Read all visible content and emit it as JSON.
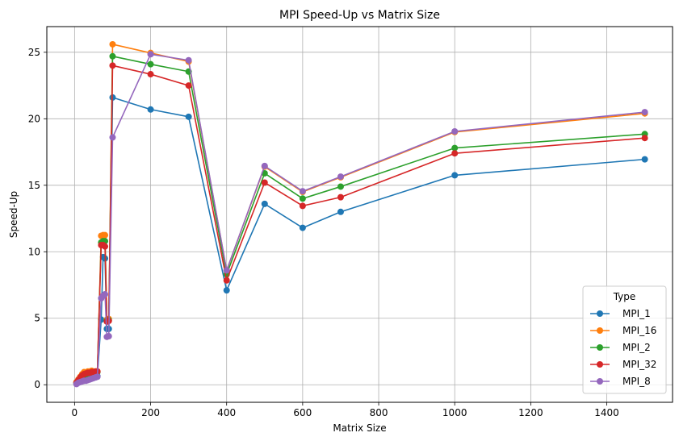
{
  "chart_data": {
    "type": "line",
    "title": "MPI Speed-Up vs Matrix Size",
    "xlabel": "Matrix Size",
    "ylabel": "Speed-Up",
    "xlim": [
      -73,
      1573
    ],
    "ylim": [
      -1.32,
      26.93
    ],
    "xticks": [
      0,
      200,
      400,
      600,
      800,
      1000,
      1200,
      1400
    ],
    "yticks": [
      0,
      5,
      10,
      15,
      20,
      25
    ],
    "grid": true,
    "legend_title": "Type",
    "legend_position": "lower-right",
    "series": [
      {
        "name": "MPI_1",
        "color": "#1f77b4",
        "x": [
          5,
          10,
          15,
          20,
          25,
          30,
          35,
          40,
          45,
          50,
          55,
          60,
          70,
          75,
          80,
          85,
          90,
          100,
          200,
          300,
          400,
          500,
          600,
          700,
          1000,
          1500
        ],
        "y": [
          0.1,
          0.2,
          0.25,
          0.3,
          0.3,
          0.35,
          0.4,
          0.45,
          0.5,
          0.55,
          0.6,
          0.65,
          4.9,
          9.6,
          9.5,
          4.2,
          4.2,
          21.6,
          20.7,
          20.15,
          7.1,
          13.6,
          11.8,
          13.0,
          15.75,
          16.95
        ]
      },
      {
        "name": "MPI_16",
        "color": "#ff7f0e",
        "x": [
          5,
          10,
          15,
          20,
          25,
          30,
          35,
          40,
          45,
          50,
          55,
          60,
          70,
          75,
          80,
          85,
          90,
          100,
          200,
          300,
          400,
          500,
          600,
          700,
          1000,
          1500
        ],
        "y": [
          0.2,
          0.4,
          0.6,
          0.8,
          0.95,
          0.9,
          1.0,
          1.0,
          1.05,
          0.95,
          1.0,
          1.0,
          11.2,
          11.25,
          11.25,
          4.9,
          4.95,
          25.6,
          24.95,
          24.3,
          8.6,
          16.4,
          14.5,
          15.6,
          19.0,
          20.4
        ]
      },
      {
        "name": "MPI_2",
        "color": "#2ca02c",
        "x": [
          5,
          10,
          15,
          20,
          25,
          30,
          35,
          40,
          45,
          50,
          55,
          60,
          70,
          75,
          80,
          85,
          90,
          100,
          200,
          300,
          400,
          500,
          600,
          700,
          1000,
          1500
        ],
        "y": [
          0.15,
          0.3,
          0.5,
          0.65,
          0.75,
          0.8,
          0.85,
          0.85,
          0.9,
          0.9,
          0.95,
          0.95,
          10.7,
          10.8,
          10.8,
          4.8,
          4.85,
          24.7,
          24.1,
          23.55,
          8.3,
          15.9,
          14.0,
          14.9,
          17.8,
          18.85
        ]
      },
      {
        "name": "MPI_32",
        "color": "#d62728",
        "x": [
          5,
          10,
          15,
          20,
          25,
          30,
          35,
          40,
          45,
          50,
          55,
          60,
          70,
          75,
          80,
          85,
          90,
          100,
          200,
          300,
          400,
          500,
          600,
          700,
          1000,
          1500
        ],
        "y": [
          0.15,
          0.35,
          0.55,
          0.7,
          0.8,
          0.85,
          0.9,
          0.9,
          0.95,
          0.95,
          1.0,
          1.0,
          10.5,
          10.5,
          10.4,
          4.75,
          4.8,
          24.0,
          23.35,
          22.5,
          7.85,
          15.2,
          13.45,
          14.1,
          17.4,
          18.55
        ]
      },
      {
        "name": "MPI_8",
        "color": "#9467bd",
        "x": [
          5,
          10,
          15,
          20,
          25,
          30,
          35,
          40,
          45,
          50,
          55,
          60,
          70,
          75,
          80,
          85,
          90,
          100,
          200,
          300,
          400,
          500,
          600,
          700,
          1000,
          1500
        ],
        "y": [
          0.05,
          0.15,
          0.2,
          0.25,
          0.3,
          0.3,
          0.35,
          0.4,
          0.45,
          0.5,
          0.55,
          0.6,
          6.5,
          6.7,
          6.8,
          3.6,
          3.65,
          18.6,
          24.85,
          24.4,
          8.6,
          16.45,
          14.55,
          15.65,
          19.05,
          20.5
        ]
      }
    ]
  }
}
